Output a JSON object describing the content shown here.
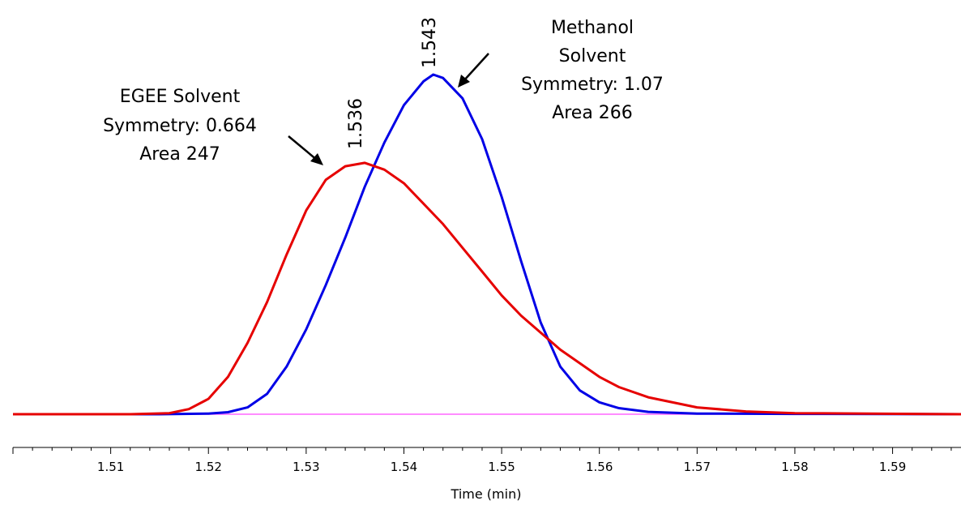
{
  "chart_data": {
    "type": "line",
    "xlabel": "Time (min)",
    "ylabel": "",
    "xlim": [
      1.5,
      1.597
    ],
    "ylim": [
      0,
      1.0
    ],
    "x_ticks": [
      "1.51",
      "1.52",
      "1.53",
      "1.54",
      "1.55",
      "1.56",
      "1.57",
      "1.58",
      "1.59"
    ],
    "grid": false,
    "legend": "none",
    "series": [
      {
        "color": "#0000e6",
        "values": [
          [
            1.5,
            0.0
          ],
          [
            1.515,
            0.0
          ],
          [
            1.52,
            0.002
          ],
          [
            1.522,
            0.006
          ],
          [
            1.524,
            0.02
          ],
          [
            1.526,
            0.06
          ],
          [
            1.528,
            0.14
          ],
          [
            1.53,
            0.25
          ],
          [
            1.532,
            0.38
          ],
          [
            1.534,
            0.52
          ],
          [
            1.536,
            0.67
          ],
          [
            1.538,
            0.8
          ],
          [
            1.54,
            0.91
          ],
          [
            1.542,
            0.98
          ],
          [
            1.543,
            1.0
          ],
          [
            1.544,
            0.99
          ],
          [
            1.546,
            0.93
          ],
          [
            1.548,
            0.81
          ],
          [
            1.55,
            0.64
          ],
          [
            1.552,
            0.45
          ],
          [
            1.554,
            0.27
          ],
          [
            1.556,
            0.14
          ],
          [
            1.558,
            0.07
          ],
          [
            1.56,
            0.035
          ],
          [
            1.562,
            0.018
          ],
          [
            1.565,
            0.007
          ],
          [
            1.57,
            0.002
          ],
          [
            1.58,
            0.001
          ],
          [
            1.597,
            0.0
          ]
        ]
      },
      {
        "color": "#e60000",
        "values": [
          [
            1.5,
            0.0
          ],
          [
            1.512,
            0.0
          ],
          [
            1.516,
            0.003
          ],
          [
            1.518,
            0.015
          ],
          [
            1.52,
            0.045
          ],
          [
            1.522,
            0.11
          ],
          [
            1.524,
            0.21
          ],
          [
            1.526,
            0.33
          ],
          [
            1.528,
            0.47
          ],
          [
            1.53,
            0.6
          ],
          [
            1.532,
            0.69
          ],
          [
            1.534,
            0.73
          ],
          [
            1.536,
            0.74
          ],
          [
            1.538,
            0.72
          ],
          [
            1.54,
            0.68
          ],
          [
            1.542,
            0.62
          ],
          [
            1.544,
            0.56
          ],
          [
            1.546,
            0.49
          ],
          [
            1.548,
            0.42
          ],
          [
            1.55,
            0.35
          ],
          [
            1.552,
            0.29
          ],
          [
            1.554,
            0.24
          ],
          [
            1.556,
            0.19
          ],
          [
            1.558,
            0.15
          ],
          [
            1.56,
            0.11
          ],
          [
            1.562,
            0.08
          ],
          [
            1.565,
            0.05
          ],
          [
            1.57,
            0.02
          ],
          [
            1.575,
            0.008
          ],
          [
            1.58,
            0.003
          ],
          [
            1.597,
            0.0
          ]
        ]
      },
      {
        "color": "#ff66ff",
        "values": [
          [
            1.5,
            0.0
          ],
          [
            1.597,
            0.0
          ]
        ]
      }
    ],
    "peak_labels": [
      {
        "text": "1.536",
        "x": 1.536
      },
      {
        "text": "1.543",
        "x": 1.543
      }
    ],
    "annotations": [
      {
        "lines": [
          "EGEE Solvent",
          "Symmetry: 0.664",
          "Area 247"
        ]
      },
      {
        "lines": [
          "Methanol",
          "Solvent",
          "Symmetry: 1.07",
          "Area 266"
        ]
      }
    ]
  }
}
